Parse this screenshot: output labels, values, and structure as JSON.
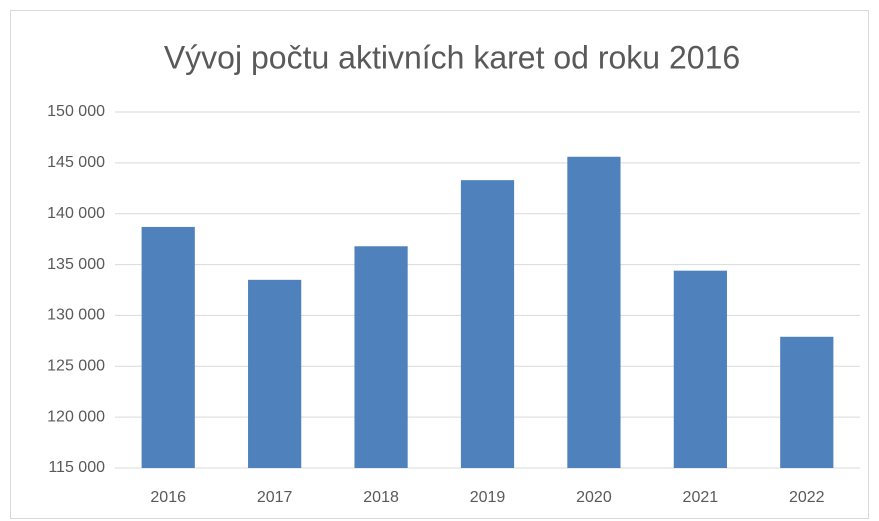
{
  "chart_data": {
    "type": "bar",
    "title": "Vývoj počtu aktivních karet od roku 2016",
    "categories": [
      "2016",
      "2017",
      "2018",
      "2019",
      "2020",
      "2021",
      "2022"
    ],
    "values": [
      138700,
      133500,
      136800,
      143300,
      145600,
      134400,
      127900
    ],
    "color": "#4f81bd",
    "ylim": [
      115000,
      150000
    ],
    "yticks": [
      {
        "value": 115000,
        "label": "115 000"
      },
      {
        "value": 120000,
        "label": "120 000"
      },
      {
        "value": 125000,
        "label": "125 000"
      },
      {
        "value": 130000,
        "label": "130 000"
      },
      {
        "value": 135000,
        "label": "135 000"
      },
      {
        "value": 140000,
        "label": "140 000"
      },
      {
        "value": 145000,
        "label": "145 000"
      },
      {
        "value": 150000,
        "label": "150 000"
      }
    ],
    "grid": true
  }
}
